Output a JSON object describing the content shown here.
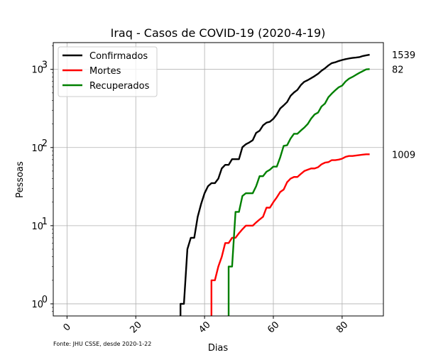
{
  "chart_data": {
    "type": "line",
    "title": "Iraq - Casos de COVID-19 (2020-4-19)",
    "xlabel": "Dias",
    "ylabel": "Pessoas",
    "yscale": "log",
    "xlim": [
      -4,
      92
    ],
    "ylim": [
      0.7,
      2200
    ],
    "xticks": [
      0,
      20,
      40,
      60,
      80
    ],
    "xtick_rotation": 45,
    "yticks": [
      {
        "value": 1,
        "base": "10",
        "exp": "0"
      },
      {
        "value": 10,
        "base": "10",
        "exp": "1"
      },
      {
        "value": 100,
        "base": "10",
        "exp": "2"
      },
      {
        "value": 1000,
        "base": "10",
        "exp": "3"
      }
    ],
    "grid": true,
    "legend_position": "upper-left",
    "source": "Fonte: JHU CSSE, desde 2020-1-22",
    "end_labels": [
      "1539",
      "1009",
      "82"
    ],
    "series": [
      {
        "name": "Confirmados",
        "color": "#000000",
        "x": [
          33,
          34,
          35,
          36,
          37,
          38,
          39,
          40,
          41,
          42,
          43,
          44,
          45,
          46,
          47,
          48,
          49,
          50,
          51,
          52,
          53,
          54,
          55,
          56,
          57,
          58,
          59,
          60,
          61,
          62,
          63,
          64,
          65,
          66,
          67,
          68,
          69,
          70,
          71,
          72,
          73,
          74,
          75,
          76,
          77,
          78,
          79,
          80,
          81,
          82,
          83,
          84,
          85,
          86,
          87,
          88
        ],
        "y": [
          1,
          1,
          5,
          7,
          7,
          13,
          19,
          26,
          32,
          35,
          35,
          40,
          54,
          60,
          60,
          71,
          71,
          71,
          101,
          110,
          116,
          124,
          154,
          164,
          192,
          208,
          214,
          233,
          266,
          316,
          346,
          382,
          458,
          506,
          547,
          630,
          694,
          728,
          772,
          820,
          878,
          961,
          1031,
          1122,
          1202,
          1232,
          1279,
          1318,
          1352,
          1378,
          1400,
          1415,
          1434,
          1482,
          1513,
          1539
        ]
      },
      {
        "name": "Mortes",
        "color": "#ff0000",
        "x": [
          42,
          43,
          44,
          45,
          46,
          47,
          48,
          49,
          50,
          51,
          52,
          53,
          54,
          55,
          56,
          57,
          58,
          59,
          60,
          61,
          62,
          63,
          64,
          65,
          66,
          67,
          68,
          69,
          70,
          71,
          72,
          73,
          74,
          75,
          76,
          77,
          78,
          79,
          80,
          81,
          82,
          83,
          84,
          85,
          86,
          87,
          88
        ],
        "y": [
          2,
          2,
          3,
          4,
          6,
          6,
          7,
          7,
          8,
          9,
          10,
          10,
          10,
          11,
          12,
          13,
          17,
          17,
          20,
          23,
          27,
          29,
          36,
          40,
          42,
          42,
          46,
          50,
          52,
          54,
          54,
          56,
          61,
          64,
          65,
          69,
          69,
          70,
          72,
          76,
          78,
          78,
          79,
          80,
          81,
          82,
          82
        ]
      },
      {
        "name": "Recuperados",
        "color": "#008000",
        "x": [
          47,
          48,
          49,
          50,
          51,
          52,
          53,
          54,
          55,
          56,
          57,
          58,
          59,
          60,
          61,
          62,
          63,
          64,
          65,
          66,
          67,
          68,
          69,
          70,
          71,
          72,
          73,
          74,
          75,
          76,
          77,
          78,
          79,
          80,
          81,
          82,
          83,
          84,
          85,
          86,
          87,
          88
        ],
        "y": [
          3,
          3,
          15,
          15,
          24,
          26,
          26,
          26,
          32,
          43,
          43,
          49,
          52,
          57,
          57,
          75,
          105,
          107,
          130,
          150,
          150,
          165,
          180,
          200,
          235,
          265,
          280,
          335,
          365,
          440,
          490,
          540,
          590,
          620,
          700,
          760,
          800,
          850,
          900,
          950,
          1000,
          1009
        ]
      }
    ]
  }
}
